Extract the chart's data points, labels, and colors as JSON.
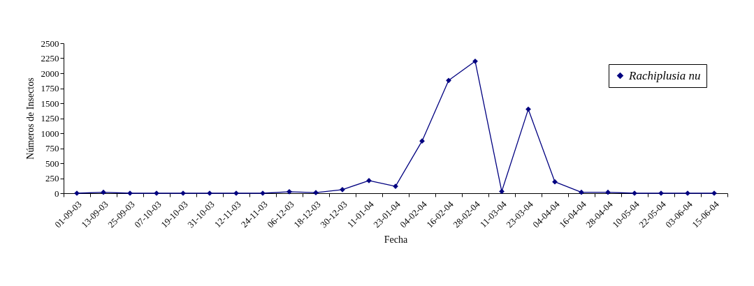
{
  "chart_data": {
    "type": "line",
    "xlabel": "Fecha",
    "ylabel": "Números de Insectos",
    "categories": [
      "01-09-03",
      "13-09-03",
      "25-09-03",
      "07-10-03",
      "19-10-03",
      "31-10-03",
      "12-11-03",
      "24-11-03",
      "06-12-03",
      "18-12-03",
      "30-12-03",
      "11-01-04",
      "23-01-04",
      "04-02-04",
      "16-02-04",
      "28-02-04",
      "11-03-04",
      "23-03-04",
      "04-04-04",
      "16-04-04",
      "28-04-04",
      "10-05-04",
      "22-05-04",
      "03-06-04",
      "15-06-04"
    ],
    "series": [
      {
        "name": "Rachiplusia nu",
        "color": "#000080",
        "values": [
          0,
          15,
          0,
          0,
          0,
          0,
          0,
          0,
          25,
          10,
          60,
          210,
          115,
          870,
          1880,
          2200,
          30,
          1400,
          190,
          15,
          15,
          0,
          0,
          0,
          0
        ]
      }
    ],
    "ylim": [
      0,
      2500
    ],
    "yticks": [
      0,
      250,
      500,
      750,
      1000,
      1250,
      1500,
      1750,
      2000,
      2250,
      2500
    ],
    "grid": false,
    "legend": "top right",
    "marker": "diamond",
    "line_style": "solid"
  }
}
